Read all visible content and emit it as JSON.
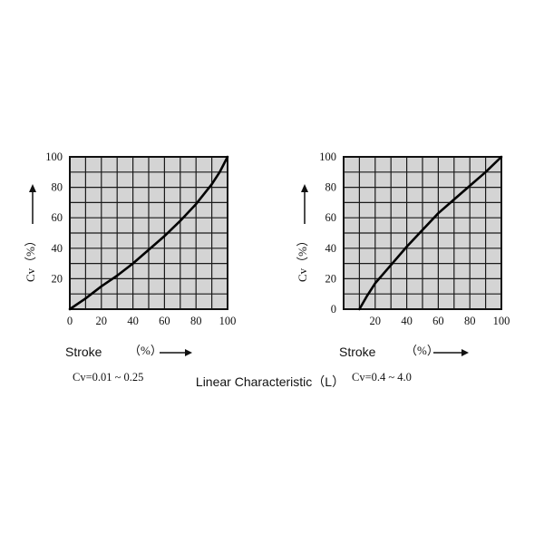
{
  "caption": "Linear Characteristic（L）",
  "chart_data": [
    {
      "type": "line",
      "ylabel": "Cv（%）",
      "xlabel": "Stroke",
      "xlabel_unit": "（%）",
      "subtitle": "Cv=0.01 ~ 0.25",
      "xlim": [
        0,
        100
      ],
      "ylim": [
        0,
        100
      ],
      "grid": true,
      "x_ticks": [
        "0",
        "20",
        "40",
        "60",
        "80",
        "100"
      ],
      "y_ticks": [
        "20",
        "40",
        "60",
        "80",
        "100"
      ],
      "series": [
        {
          "x": [
            0,
            10,
            20,
            30,
            40,
            50,
            60,
            70,
            80,
            90,
            95,
            100
          ],
          "y": [
            0,
            7,
            15,
            22,
            30,
            39,
            48,
            58,
            69,
            82,
            90,
            100
          ]
        }
      ]
    },
    {
      "type": "line",
      "ylabel": "Cv（%）",
      "xlabel": "Stroke",
      "xlabel_unit": "（%）",
      "subtitle": "Cv=0.4 ~ 4.0",
      "xlim": [
        0,
        100
      ],
      "ylim": [
        0,
        100
      ],
      "grid": true,
      "x_ticks": [
        "20",
        "40",
        "60",
        "80",
        "100"
      ],
      "y_ticks": [
        "0",
        "20",
        "40",
        "60",
        "80",
        "100"
      ],
      "series": [
        {
          "x": [
            10,
            15,
            20,
            30,
            40,
            50,
            60,
            70,
            80,
            90,
            100
          ],
          "y": [
            0,
            9,
            17,
            29,
            41,
            52,
            63,
            72,
            81,
            90,
            100
          ]
        }
      ]
    }
  ]
}
